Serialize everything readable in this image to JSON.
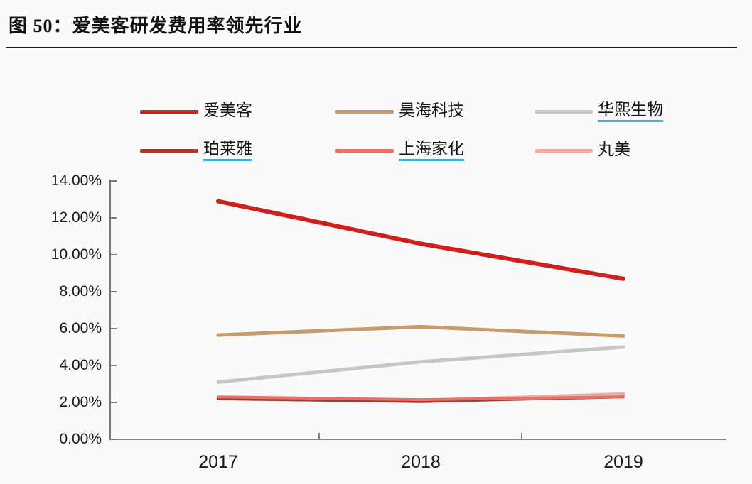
{
  "figure": {
    "title": "图 50：爱美客研发费用率领先行业"
  },
  "legend": {
    "underline_color": "#35b3dc",
    "items": [
      {
        "label": "爱美客",
        "color": "#d0201c",
        "underline": false
      },
      {
        "label": "昊海科技",
        "color": "#c69c6d",
        "underline": false
      },
      {
        "label": "华熙生物",
        "color": "#c6c6c6",
        "underline": true
      },
      {
        "label": "珀莱雅",
        "color": "#a43b32",
        "underline": true
      },
      {
        "label": "上海家化",
        "color": "#e8706a",
        "underline": true
      },
      {
        "label": "丸美",
        "color": "#f2ada0",
        "underline": false
      }
    ]
  },
  "chart_data": {
    "type": "line",
    "title": "爱美客研发费用率领先行业",
    "x": [
      "2017",
      "2018",
      "2019"
    ],
    "series": [
      {
        "name": "华熙生物",
        "color": "#c6c6c6",
        "width": 5,
        "values": [
          3.1,
          4.2,
          5.0
        ]
      },
      {
        "name": "昊海科技",
        "color": "#c69c6d",
        "width": 5,
        "values": [
          5.65,
          6.1,
          5.6
        ]
      },
      {
        "name": "丸美",
        "color": "#f2ada0",
        "width": 5,
        "values": [
          2.2,
          2.1,
          2.45
        ]
      },
      {
        "name": "珀莱雅",
        "color": "#a43b32",
        "width": 4,
        "values": [
          2.2,
          2.05,
          2.3
        ]
      },
      {
        "name": "上海家化",
        "color": "#e8706a",
        "width": 4,
        "values": [
          2.3,
          2.15,
          2.3
        ]
      },
      {
        "name": "爱美客",
        "color": "#d0201c",
        "width": 6,
        "values": [
          12.9,
          10.6,
          8.7
        ]
      }
    ],
    "y_ticks": [
      "14.00%",
      "12.00%",
      "10.00%",
      "8.00%",
      "6.00%",
      "4.00%",
      "2.00%",
      "0.00%"
    ],
    "y_min": 0,
    "y_max": 14,
    "y_step": 2,
    "xlabel": "",
    "ylabel": "",
    "grid": false,
    "legend_position": "top",
    "axis_color": "#595959"
  }
}
